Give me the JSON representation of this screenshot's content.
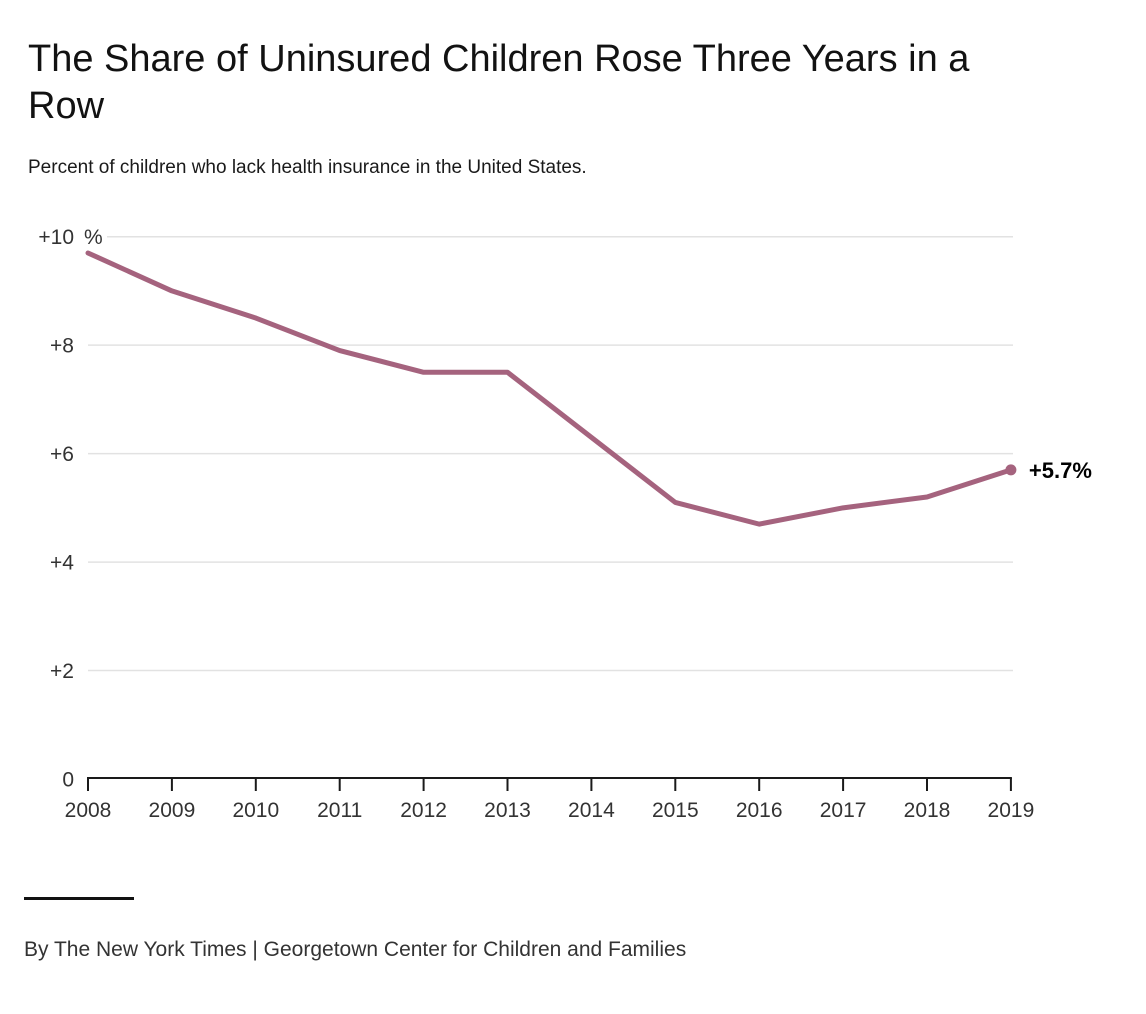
{
  "header": {
    "title": "The Share of Uninsured Children Rose Three Years in a Row",
    "subtitle": "Percent of children who lack health insurance in the United States."
  },
  "chart_data": {
    "type": "line",
    "title": "The Share of Uninsured Children Rose Three Years in a Row",
    "subtitle": "Percent of children who lack health insurance in the United States.",
    "x": [
      2008,
      2009,
      2010,
      2011,
      2012,
      2013,
      2014,
      2015,
      2016,
      2017,
      2018,
      2019
    ],
    "series": [
      {
        "name": "Percent of children who lack health insurance",
        "values": [
          9.7,
          9.0,
          8.5,
          7.9,
          7.5,
          7.5,
          6.3,
          5.1,
          4.7,
          5.0,
          5.2,
          5.7
        ],
        "color": "#a5637e"
      }
    ],
    "end_label": "+5.7%",
    "xlabel": "",
    "ylabel": "",
    "ylim": [
      0,
      10.5
    ],
    "y_ticks": [
      {
        "value": 0,
        "label": "0"
      },
      {
        "value": 2,
        "label": "+2"
      },
      {
        "value": 4,
        "label": "+4"
      },
      {
        "value": 6,
        "label": "+6"
      },
      {
        "value": 8,
        "label": "+8"
      },
      {
        "value": 10,
        "label": "+10",
        "suffix": "%"
      }
    ],
    "grid": "horizontal",
    "legend": "none",
    "colors": {
      "grid": "#e2e2e2",
      "axis": "#1a1a1a",
      "tick_label": "#333333",
      "annotation": "#000000"
    }
  },
  "footer": {
    "credit": "By The New York Times | Georgetown Center for Children and Families"
  }
}
